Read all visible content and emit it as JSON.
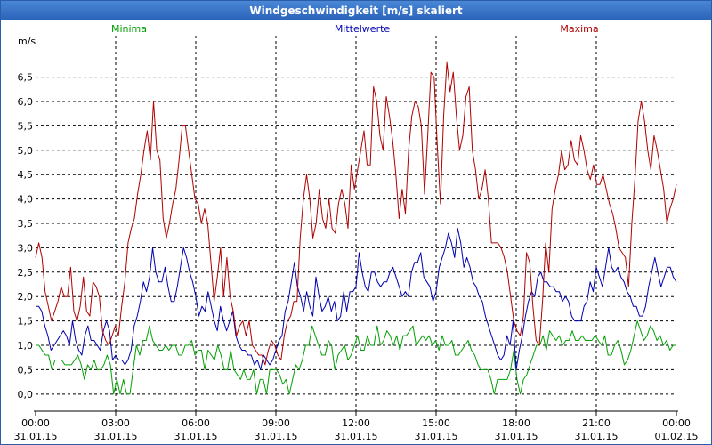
{
  "chart_data": {
    "type": "line",
    "title": "Windgeschwindigkeit [m/s] skaliert",
    "ylabel": "m/s",
    "ylim": [
      -0.35,
      7.35
    ],
    "y_ticks": [
      "0,0",
      "0,5",
      "1,0",
      "1,5",
      "2,0",
      "2,5",
      "3,0",
      "3,5",
      "4,0",
      "4,5",
      "5,0",
      "5,5",
      "6,0",
      "6,5"
    ],
    "x_ticks": [
      {
        "time": "00:00",
        "date": "31.01.15"
      },
      {
        "time": "03:00",
        "date": "31.01.15"
      },
      {
        "time": "06:00",
        "date": "31.01.15"
      },
      {
        "time": "09:00",
        "date": "31.01.15"
      },
      {
        "time": "12:00",
        "date": "31.01.15"
      },
      {
        "time": "15:00",
        "date": "31.01.15"
      },
      {
        "time": "18:00",
        "date": "31.01.15"
      },
      {
        "time": "21:00",
        "date": "31.01.15"
      },
      {
        "time": "00:00",
        "date": "01.02.15"
      }
    ],
    "x_range_hours": [
      0,
      24
    ],
    "sample_interval_min": 10,
    "series": [
      {
        "name": "Minima",
        "color": "#00a000",
        "values": [
          1.0,
          1.0,
          0.9,
          0.8,
          0.8,
          0.5,
          0.7,
          0.7,
          0.7,
          0.6,
          0.6,
          0.6,
          0.7,
          0.8,
          0.6,
          0.3,
          0.6,
          0.5,
          0.7,
          0.5,
          0.5,
          0.6,
          0.8,
          0.6,
          0.0,
          0.3,
          0.0,
          0.3,
          0.0,
          0.0,
          0.5,
          1.0,
          0.8,
          1.1,
          1.1,
          1.4,
          1.1,
          1.0,
          0.9,
          0.9,
          1.0,
          0.9,
          1.0,
          1.0,
          0.8,
          0.8,
          1.0,
          1.0,
          1.1,
          0.8,
          0.9,
          0.9,
          0.5,
          0.9,
          0.8,
          0.7,
          1.0,
          0.8,
          0.5,
          0.5,
          0.9,
          0.5,
          0.4,
          0.3,
          0.5,
          0.3,
          0.3,
          0.5,
          0.0,
          0.3,
          0.3,
          0.0,
          0.5,
          0.5,
          0.5,
          0.4,
          0.2,
          0.3,
          0.0,
          0.3,
          0.6,
          0.5,
          0.7,
          1.0,
          1.0,
          1.4,
          1.2,
          1.0,
          0.8,
          0.8,
          1.1,
          1.0,
          0.5,
          0.8,
          0.9,
          1.0,
          0.7,
          0.8,
          1.0,
          1.2,
          0.9,
          0.9,
          1.2,
          1.0,
          1.0,
          1.4,
          1.0,
          1.1,
          1.3,
          1.2,
          1.0,
          1.2,
          0.9,
          1.2,
          1.2,
          1.3,
          1.4,
          1.0,
          1.1,
          1.2,
          1.1,
          1.2,
          1.0,
          1.1,
          0.9,
          1.2,
          1.0,
          1.0,
          1.1,
          0.8,
          0.8,
          0.9,
          1.0,
          1.1,
          0.9,
          0.8,
          0.6,
          0.5,
          0.5,
          0.5,
          0.3,
          0.0,
          0.3,
          0.3,
          0.3,
          0.3,
          0.5,
          0.9,
          0.3,
          0.0,
          0.3,
          0.4,
          0.6,
          0.8,
          1.0,
          1.0,
          1.2,
          0.9,
          1.3,
          1.2,
          1.1,
          1.2,
          1.0,
          1.1,
          1.1,
          1.3,
          1.1,
          1.1,
          1.2,
          1.1,
          1.1,
          1.1,
          1.2,
          1.1,
          1.0,
          1.2,
          0.8,
          0.8,
          1.0,
          1.1,
          0.9,
          0.6,
          0.7,
          0.9,
          1.2,
          1.5,
          1.3,
          1.1,
          1.2,
          1.4,
          1.3,
          1.1,
          1.2,
          1.0,
          1.1,
          0.9,
          1.0,
          1.0
        ]
      },
      {
        "name": "Mittelwerte",
        "color": "#0000b0",
        "values": [
          1.8,
          1.8,
          1.7,
          1.4,
          1.2,
          0.9,
          1.0,
          1.1,
          1.2,
          1.3,
          1.2,
          1.0,
          1.5,
          1.1,
          0.9,
          0.8,
          1.2,
          1.4,
          1.1,
          1.1,
          1.0,
          0.9,
          1.3,
          1.5,
          1.3,
          0.7,
          0.8,
          0.7,
          0.7,
          0.6,
          0.7,
          0.9,
          1.4,
          1.6,
          1.9,
          2.3,
          2.1,
          2.4,
          3.0,
          2.5,
          2.3,
          2.3,
          2.6,
          2.2,
          1.9,
          1.9,
          2.2,
          2.6,
          3.0,
          2.8,
          2.5,
          2.3,
          2.0,
          1.6,
          1.8,
          1.7,
          2.1,
          1.8,
          1.5,
          1.3,
          1.8,
          1.5,
          1.3,
          1.5,
          1.7,
          1.2,
          1.0,
          0.9,
          0.9,
          0.8,
          0.8,
          0.6,
          0.7,
          0.5,
          0.8,
          0.7,
          0.6,
          0.7,
          0.9,
          1.1,
          1.2,
          1.7,
          1.9,
          2.3,
          2.7,
          2.2,
          2.0,
          1.7,
          2.1,
          1.8,
          1.6,
          2.4,
          2.0,
          1.7,
          1.8,
          2.0,
          1.7,
          1.9,
          1.5,
          1.6,
          2.1,
          1.7,
          2.1,
          2.1,
          2.2,
          2.9,
          2.5,
          2.2,
          2.1,
          2.5,
          2.5,
          2.3,
          2.2,
          2.3,
          2.3,
          2.5,
          2.6,
          2.4,
          2.2,
          2.0,
          2.1,
          2.0,
          2.5,
          2.7,
          2.7,
          2.9,
          2.4,
          2.3,
          2.2,
          1.9,
          2.1,
          2.6,
          2.8,
          3.0,
          3.3,
          3.1,
          2.8,
          3.4,
          3.1,
          2.6,
          2.8,
          2.6,
          2.3,
          2.2,
          2.0,
          1.9,
          1.6,
          1.4,
          1.2,
          1.0,
          0.8,
          0.7,
          0.8,
          1.2,
          1.0,
          1.5,
          0.5,
          0.9,
          1.2,
          1.6,
          1.9,
          2.1,
          2.0,
          2.4,
          2.5,
          2.3,
          2.3,
          2.2,
          2.2,
          2.1,
          2.1,
          1.9,
          2.0,
          1.9,
          1.6,
          1.5,
          1.5,
          1.5,
          1.8,
          1.9,
          2.3,
          2.1,
          2.6,
          2.4,
          2.2,
          2.6,
          3.0,
          2.6,
          2.5,
          2.6,
          2.4,
          2.3,
          2.1,
          2.0,
          1.8,
          1.8,
          1.6,
          1.6,
          1.8,
          2.2,
          2.5,
          2.8,
          2.5,
          2.2,
          2.4,
          2.6,
          2.6,
          2.4,
          2.3
        ]
      },
      {
        "name": "Maxima",
        "color": "#b00000",
        "values": [
          2.8,
          3.1,
          2.8,
          2.1,
          1.8,
          1.5,
          1.7,
          1.9,
          2.2,
          2.0,
          2.0,
          2.6,
          1.7,
          1.5,
          1.8,
          2.4,
          1.7,
          1.6,
          2.3,
          2.2,
          2.0,
          1.3,
          1.1,
          1.0,
          1.2,
          1.4,
          1.2,
          1.8,
          2.3,
          3.1,
          3.4,
          3.6,
          4.1,
          4.5,
          5.0,
          5.4,
          4.8,
          6.0,
          5.0,
          4.8,
          3.6,
          3.2,
          3.5,
          3.9,
          4.2,
          4.8,
          5.5,
          5.5,
          5.0,
          4.5,
          4.0,
          3.9,
          3.5,
          3.8,
          3.5,
          2.7,
          1.9,
          2.4,
          3.0,
          2.0,
          2.8,
          2.0,
          1.7,
          1.2,
          1.4,
          1.5,
          1.2,
          1.5,
          1.0,
          0.9,
          0.8,
          0.8,
          0.6,
          0.9,
          1.1,
          1.0,
          0.8,
          0.7,
          1.2,
          1.5,
          1.6,
          1.9,
          1.9,
          3.2,
          4.0,
          4.5,
          4.0,
          3.2,
          3.5,
          4.2,
          3.6,
          3.4,
          4.0,
          3.4,
          3.3,
          3.9,
          4.2,
          3.9,
          3.4,
          4.7,
          4.2,
          4.6,
          5.0,
          5.4,
          4.7,
          4.7,
          6.3,
          6.0,
          5.3,
          5.0,
          6.1,
          5.7,
          5.2,
          4.5,
          3.6,
          4.2,
          3.7,
          5.0,
          5.7,
          6.0,
          5.9,
          5.5,
          4.1,
          5.3,
          6.6,
          6.5,
          5.1,
          3.9,
          5.7,
          6.8,
          6.2,
          6.6,
          5.7,
          5.0,
          5.3,
          6.1,
          6.3,
          5.0,
          4.6,
          4.0,
          4.2,
          4.6,
          4.0,
          3.1,
          3.1,
          3.1,
          3.0,
          2.8,
          2.5,
          2.0,
          1.5,
          1.3,
          1.2,
          1.6,
          2.9,
          2.7,
          1.8,
          1.1,
          1.0,
          1.9,
          3.1,
          2.5,
          3.8,
          4.2,
          4.5,
          5.0,
          4.6,
          4.7,
          5.2,
          4.8,
          4.7,
          5.3,
          5.0,
          4.6,
          4.4,
          4.7,
          4.3,
          4.3,
          4.5,
          4.2,
          3.9,
          3.7,
          3.4,
          3.0,
          2.9,
          2.8,
          2.2,
          3.5,
          4.4,
          5.6,
          6.0,
          5.6,
          5.0,
          4.6,
          5.3,
          5.0,
          4.6,
          4.2,
          3.5,
          3.8,
          4.0,
          4.3
        ]
      }
    ]
  }
}
